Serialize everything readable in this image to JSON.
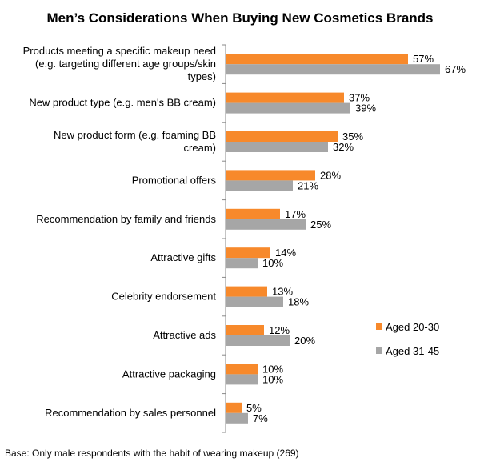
{
  "chart_data": {
    "type": "bar",
    "orientation": "horizontal",
    "title": "Men’s Considerations When Buying New Cosmetics Brands",
    "categories": [
      "Products meeting a specific makeup need (e.g. targeting different age groups/skin types)",
      "New product type (e.g. men's BB cream)",
      "New product form (e.g. foaming BB cream)",
      "Promotional offers",
      "Recommendation by family and friends",
      "Attractive gifts",
      "Celebrity endorsement",
      "Attractive ads",
      "Attractive packaging",
      "Recommendation by sales personnel"
    ],
    "category_lines": [
      [
        "Products meeting a specific makeup need",
        "(e.g. targeting different age groups/skin",
        "types)"
      ],
      [
        "New product type (e.g. men's BB cream)"
      ],
      [
        "New product form (e.g. foaming BB",
        "cream)"
      ],
      [
        "Promotional offers"
      ],
      [
        "Recommendation by family and friends"
      ],
      [
        "Attractive gifts"
      ],
      [
        "Celebrity endorsement"
      ],
      [
        "Attractive ads"
      ],
      [
        "Attractive packaging"
      ],
      [
        "Recommendation by sales personnel"
      ]
    ],
    "series": [
      {
        "name": "Aged 20-30",
        "color": "#F7892B",
        "values": [
          57,
          37,
          35,
          28,
          17,
          14,
          13,
          12,
          10,
          5
        ]
      },
      {
        "name": "Aged 31-45",
        "color": "#A6A6A6",
        "values": [
          67,
          39,
          32,
          21,
          25,
          10,
          18,
          20,
          10,
          7
        ]
      }
    ],
    "value_suffix": "%",
    "xlim": [
      0,
      100
    ],
    "grid": false,
    "legend_position": "right",
    "footnote": "Base: Only male respondents with the habit of wearing makeup (269)"
  }
}
